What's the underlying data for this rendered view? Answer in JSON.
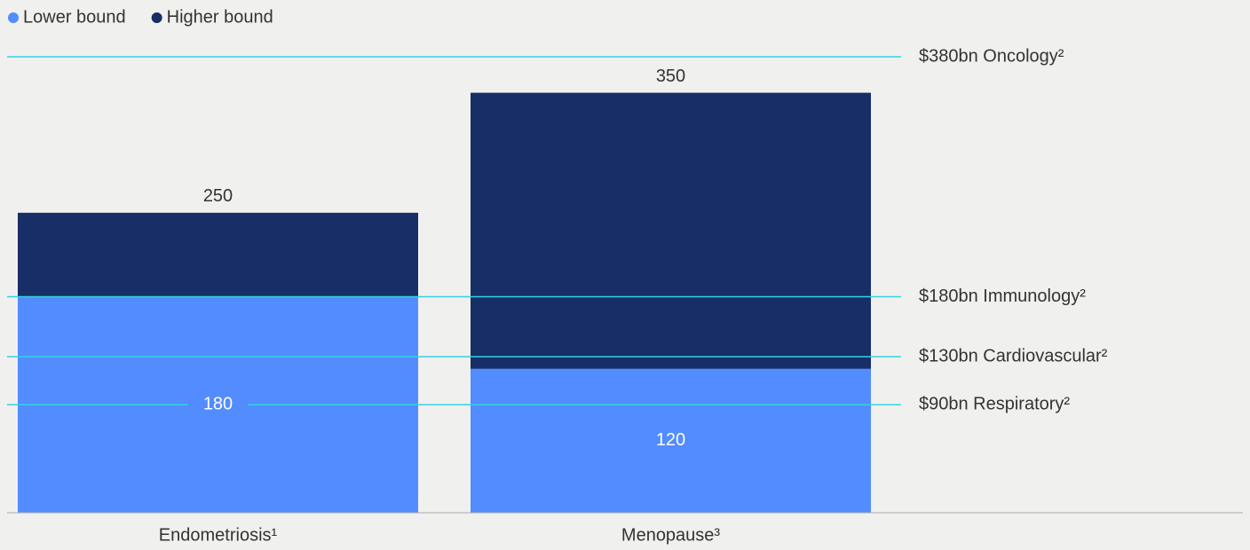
{
  "chart_data": {
    "type": "bar",
    "categories": [
      "Endometriosis¹",
      "Menopause³"
    ],
    "series": [
      {
        "name": "Lower bound",
        "color": "#528cff",
        "values": [
          180,
          120
        ]
      },
      {
        "name": "Higher bound",
        "color": "#172e66",
        "values": [
          250,
          350
        ]
      }
    ],
    "ylim": [
      0,
      380
    ],
    "legend": "top-left",
    "reference_lines": [
      {
        "value": 380,
        "label": "$380bn Oncology²"
      },
      {
        "value": 180,
        "label": "$180bn Immunology²"
      },
      {
        "value": 130,
        "label": "$130bn Cardiovascular²"
      },
      {
        "value": 90,
        "label": "$90bn Respiratory²"
      }
    ],
    "reference_color": "#33d3e3"
  }
}
